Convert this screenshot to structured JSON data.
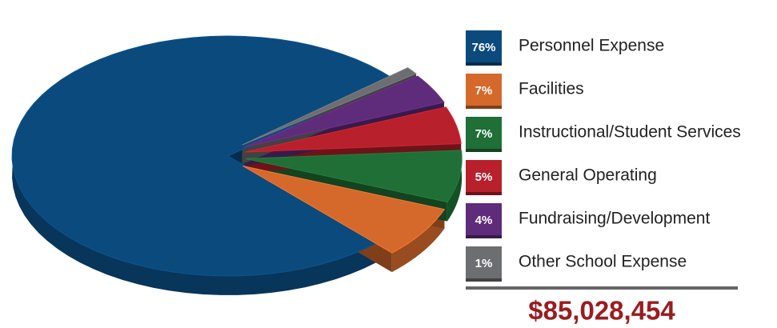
{
  "chart_data": {
    "type": "pie",
    "categories": [
      "Personnel Expense",
      "Facilities",
      "Instructional/Student Services",
      "General Operating",
      "Fundraising/Development",
      "Other School Expense"
    ],
    "values": [
      76,
      7,
      7,
      5,
      4,
      1
    ],
    "value_labels": [
      "76%",
      "7%",
      "7%",
      "5%",
      "4%",
      "1%"
    ],
    "colors": [
      "#0b4a7d",
      "#d4692b",
      "#1f6f36",
      "#b8202b",
      "#5f2b7b",
      "#6d6e71"
    ],
    "total": "$85,028,454"
  }
}
